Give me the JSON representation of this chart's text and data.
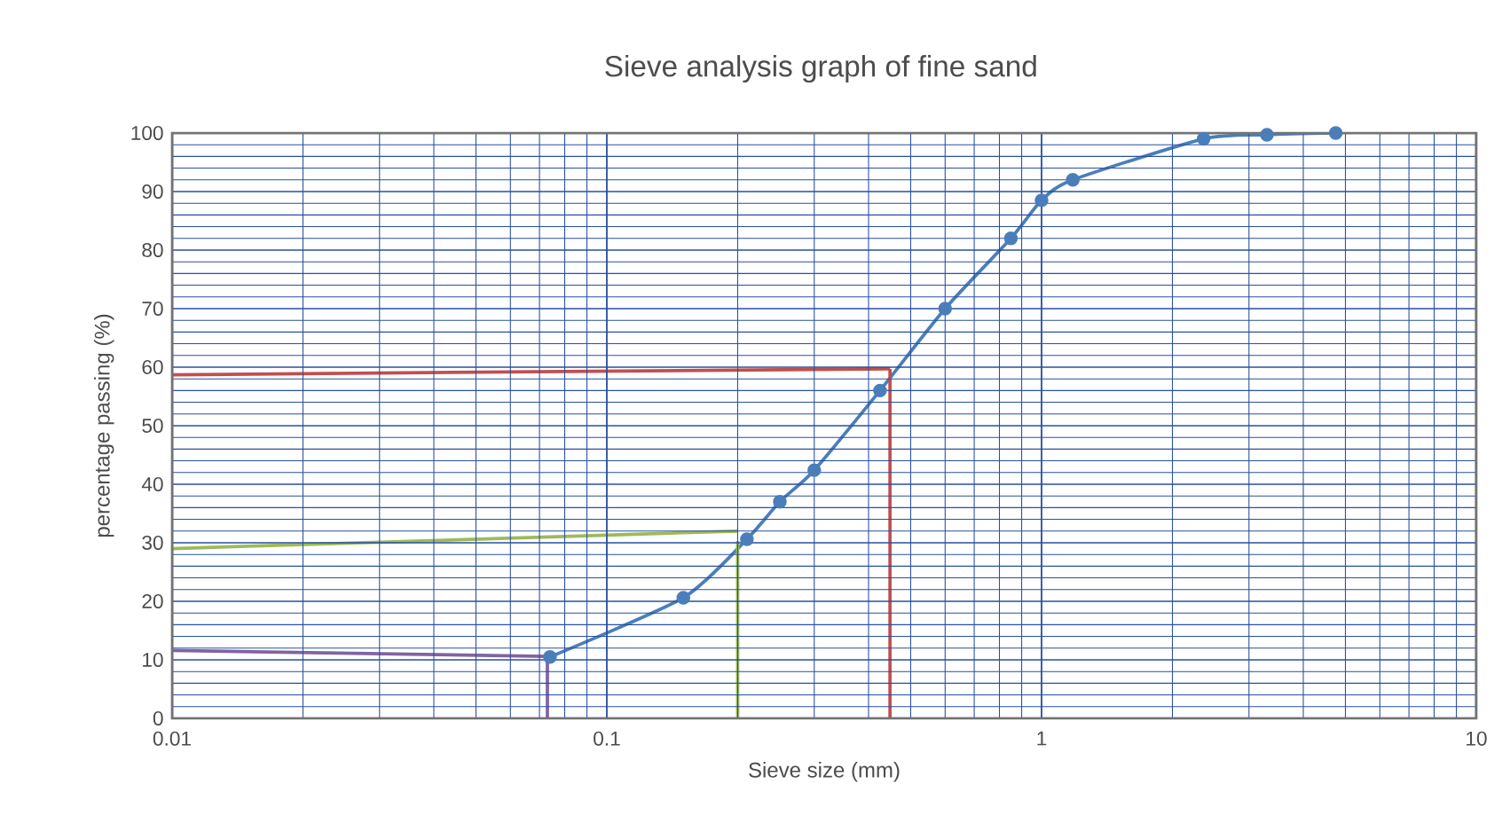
{
  "chart_data": {
    "type": "line",
    "title": "Sieve analysis graph of fine sand",
    "xlabel": "Sieve size (mm)",
    "ylabel": "percentage passing (%)",
    "log": "x",
    "xlim": [
      0.01,
      10
    ],
    "ylim": [
      0,
      100
    ],
    "xticks": [
      0.01,
      0.1,
      1,
      10
    ],
    "yticks": [
      0,
      10,
      20,
      30,
      40,
      50,
      60,
      70,
      80,
      90,
      100
    ],
    "grid": true,
    "series": [
      {
        "color": "#4a7ebb",
        "marker": "circle",
        "x": [
          0.074,
          0.15,
          0.21,
          0.25,
          0.3,
          0.425,
          0.6,
          0.85,
          1.0,
          1.18,
          2.36,
          3.3,
          4.75
        ],
        "values": [
          10.5,
          20.6,
          30.6,
          37,
          42.4,
          56,
          70,
          82,
          88.5,
          92,
          99,
          99.7,
          100
        ]
      },
      {
        "color": "#c0504d",
        "marker": "none",
        "x": [
          0.01,
          0.448
        ],
        "values": [
          58.7,
          59.7
        ]
      },
      {
        "color": "#c0504d",
        "marker": "none",
        "x": [
          0.448,
          0.448
        ],
        "values": [
          59.7,
          0
        ]
      },
      {
        "color": "#9bbb59",
        "marker": "none",
        "x": [
          0.01,
          0.2
        ],
        "values": [
          29,
          32
        ]
      },
      {
        "color": "#9bbb59",
        "marker": "none",
        "x": [
          0.2,
          0.2
        ],
        "values": [
          30.3,
          0
        ]
      },
      {
        "color": "#8064a2",
        "marker": "none",
        "x": [
          0.01,
          0.073
        ],
        "values": [
          11.6,
          10.6
        ]
      },
      {
        "color": "#8064a2",
        "marker": "none",
        "x": [
          0.073,
          0.073
        ],
        "values": [
          10.6,
          0
        ]
      }
    ]
  }
}
